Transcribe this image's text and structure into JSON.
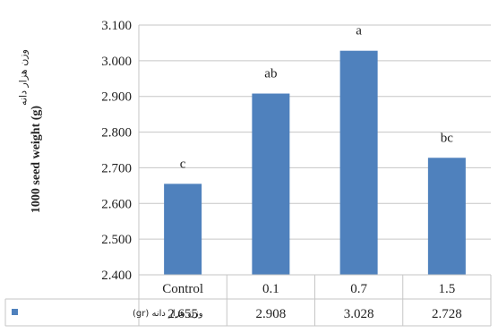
{
  "chart_data": {
    "type": "bar",
    "title": "",
    "ylabel": "1000 seed weight (g)",
    "ylabel_secondary": "وزن هزار دانه",
    "categories": [
      "Control",
      "0.1",
      "0.7",
      "1.5"
    ],
    "series": [
      {
        "name": "وزن هزار دانه (gr)",
        "values": [
          2.655,
          2.908,
          3.028,
          2.728
        ],
        "color": "#4f81bd"
      }
    ],
    "value_labels": [
      "2.655",
      "2.908",
      "3.028",
      "2.728"
    ],
    "significance_letters": [
      "c",
      "ab",
      "a",
      "bc"
    ],
    "ylim": [
      2.4,
      3.1
    ],
    "yticks": [
      "2.400",
      "2.500",
      "2.600",
      "2.700",
      "2.800",
      "2.900",
      "3.000",
      "3.100"
    ],
    "grid": true,
    "legend": "data-table-left",
    "data_table": true
  }
}
